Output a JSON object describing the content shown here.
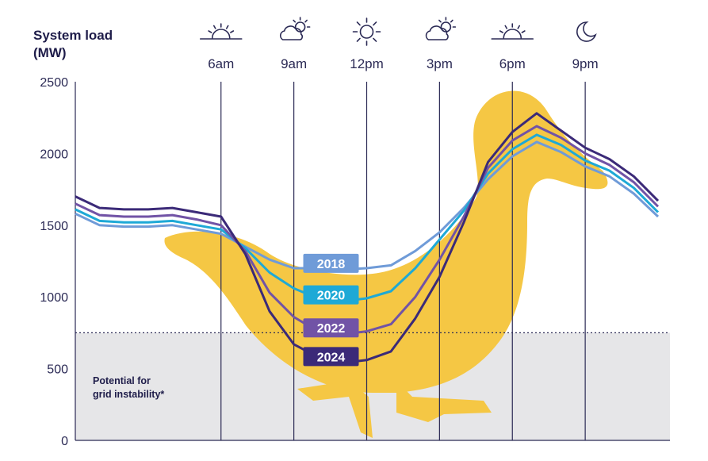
{
  "chart_data": {
    "type": "line",
    "ylabel": "System load\n(MW)",
    "xlabel": "",
    "ylim": [
      0,
      2500
    ],
    "y_ticks": [
      0,
      500,
      1000,
      1500,
      2000,
      2500
    ],
    "time_markers": [
      {
        "label": "6am",
        "icon": "sunrise-icon",
        "hour": 6
      },
      {
        "label": "9am",
        "icon": "partly-cloudy-icon",
        "hour": 9
      },
      {
        "label": "12pm",
        "icon": "sun-icon",
        "hour": 12
      },
      {
        "label": "3pm",
        "icon": "partly-cloudy-icon",
        "hour": 15
      },
      {
        "label": "6pm",
        "icon": "sunset-icon",
        "hour": 18
      },
      {
        "label": "9pm",
        "icon": "moon-icon",
        "hour": 21
      }
    ],
    "x_hours": [
      0,
      1,
      2,
      3,
      4,
      5,
      6,
      7,
      8,
      9,
      10,
      11,
      12,
      13,
      14,
      15,
      16,
      17,
      18,
      19,
      20,
      21,
      22,
      23,
      24
    ],
    "series": [
      {
        "name": "2018",
        "color": "#6f9bd8",
        "values": [
          1580,
          1500,
          1490,
          1490,
          1500,
          1470,
          1440,
          1350,
          1260,
          1200,
          1200,
          1190,
          1200,
          1220,
          1320,
          1450,
          1620,
          1820,
          1980,
          2080,
          2010,
          1910,
          1840,
          1720,
          1560
        ]
      },
      {
        "name": "2020",
        "color": "#1ea9d6",
        "values": [
          1610,
          1530,
          1520,
          1520,
          1530,
          1500,
          1470,
          1340,
          1170,
          1060,
          990,
          970,
          990,
          1040,
          1200,
          1400,
          1600,
          1860,
          2030,
          2130,
          2060,
          1950,
          1880,
          1760,
          1590
        ]
      },
      {
        "name": "2022",
        "color": "#7153a6",
        "values": [
          1650,
          1570,
          1560,
          1560,
          1570,
          1540,
          1500,
          1320,
          1030,
          860,
          760,
          740,
          760,
          810,
          1000,
          1260,
          1560,
          1900,
          2090,
          2190,
          2110,
          2000,
          1920,
          1800,
          1630
        ]
      },
      {
        "name": "2024",
        "color": "#3b2a78",
        "values": [
          1700,
          1620,
          1610,
          1610,
          1620,
          1590,
          1560,
          1300,
          900,
          670,
          580,
          540,
          560,
          620,
          850,
          1140,
          1520,
          1940,
          2150,
          2280,
          2160,
          2040,
          1960,
          1840,
          1670
        ]
      }
    ],
    "threshold": {
      "value": 750,
      "label": "Potential for\ngrid instability*"
    },
    "grid": false,
    "legend": "inline labels at the curve minimums"
  }
}
